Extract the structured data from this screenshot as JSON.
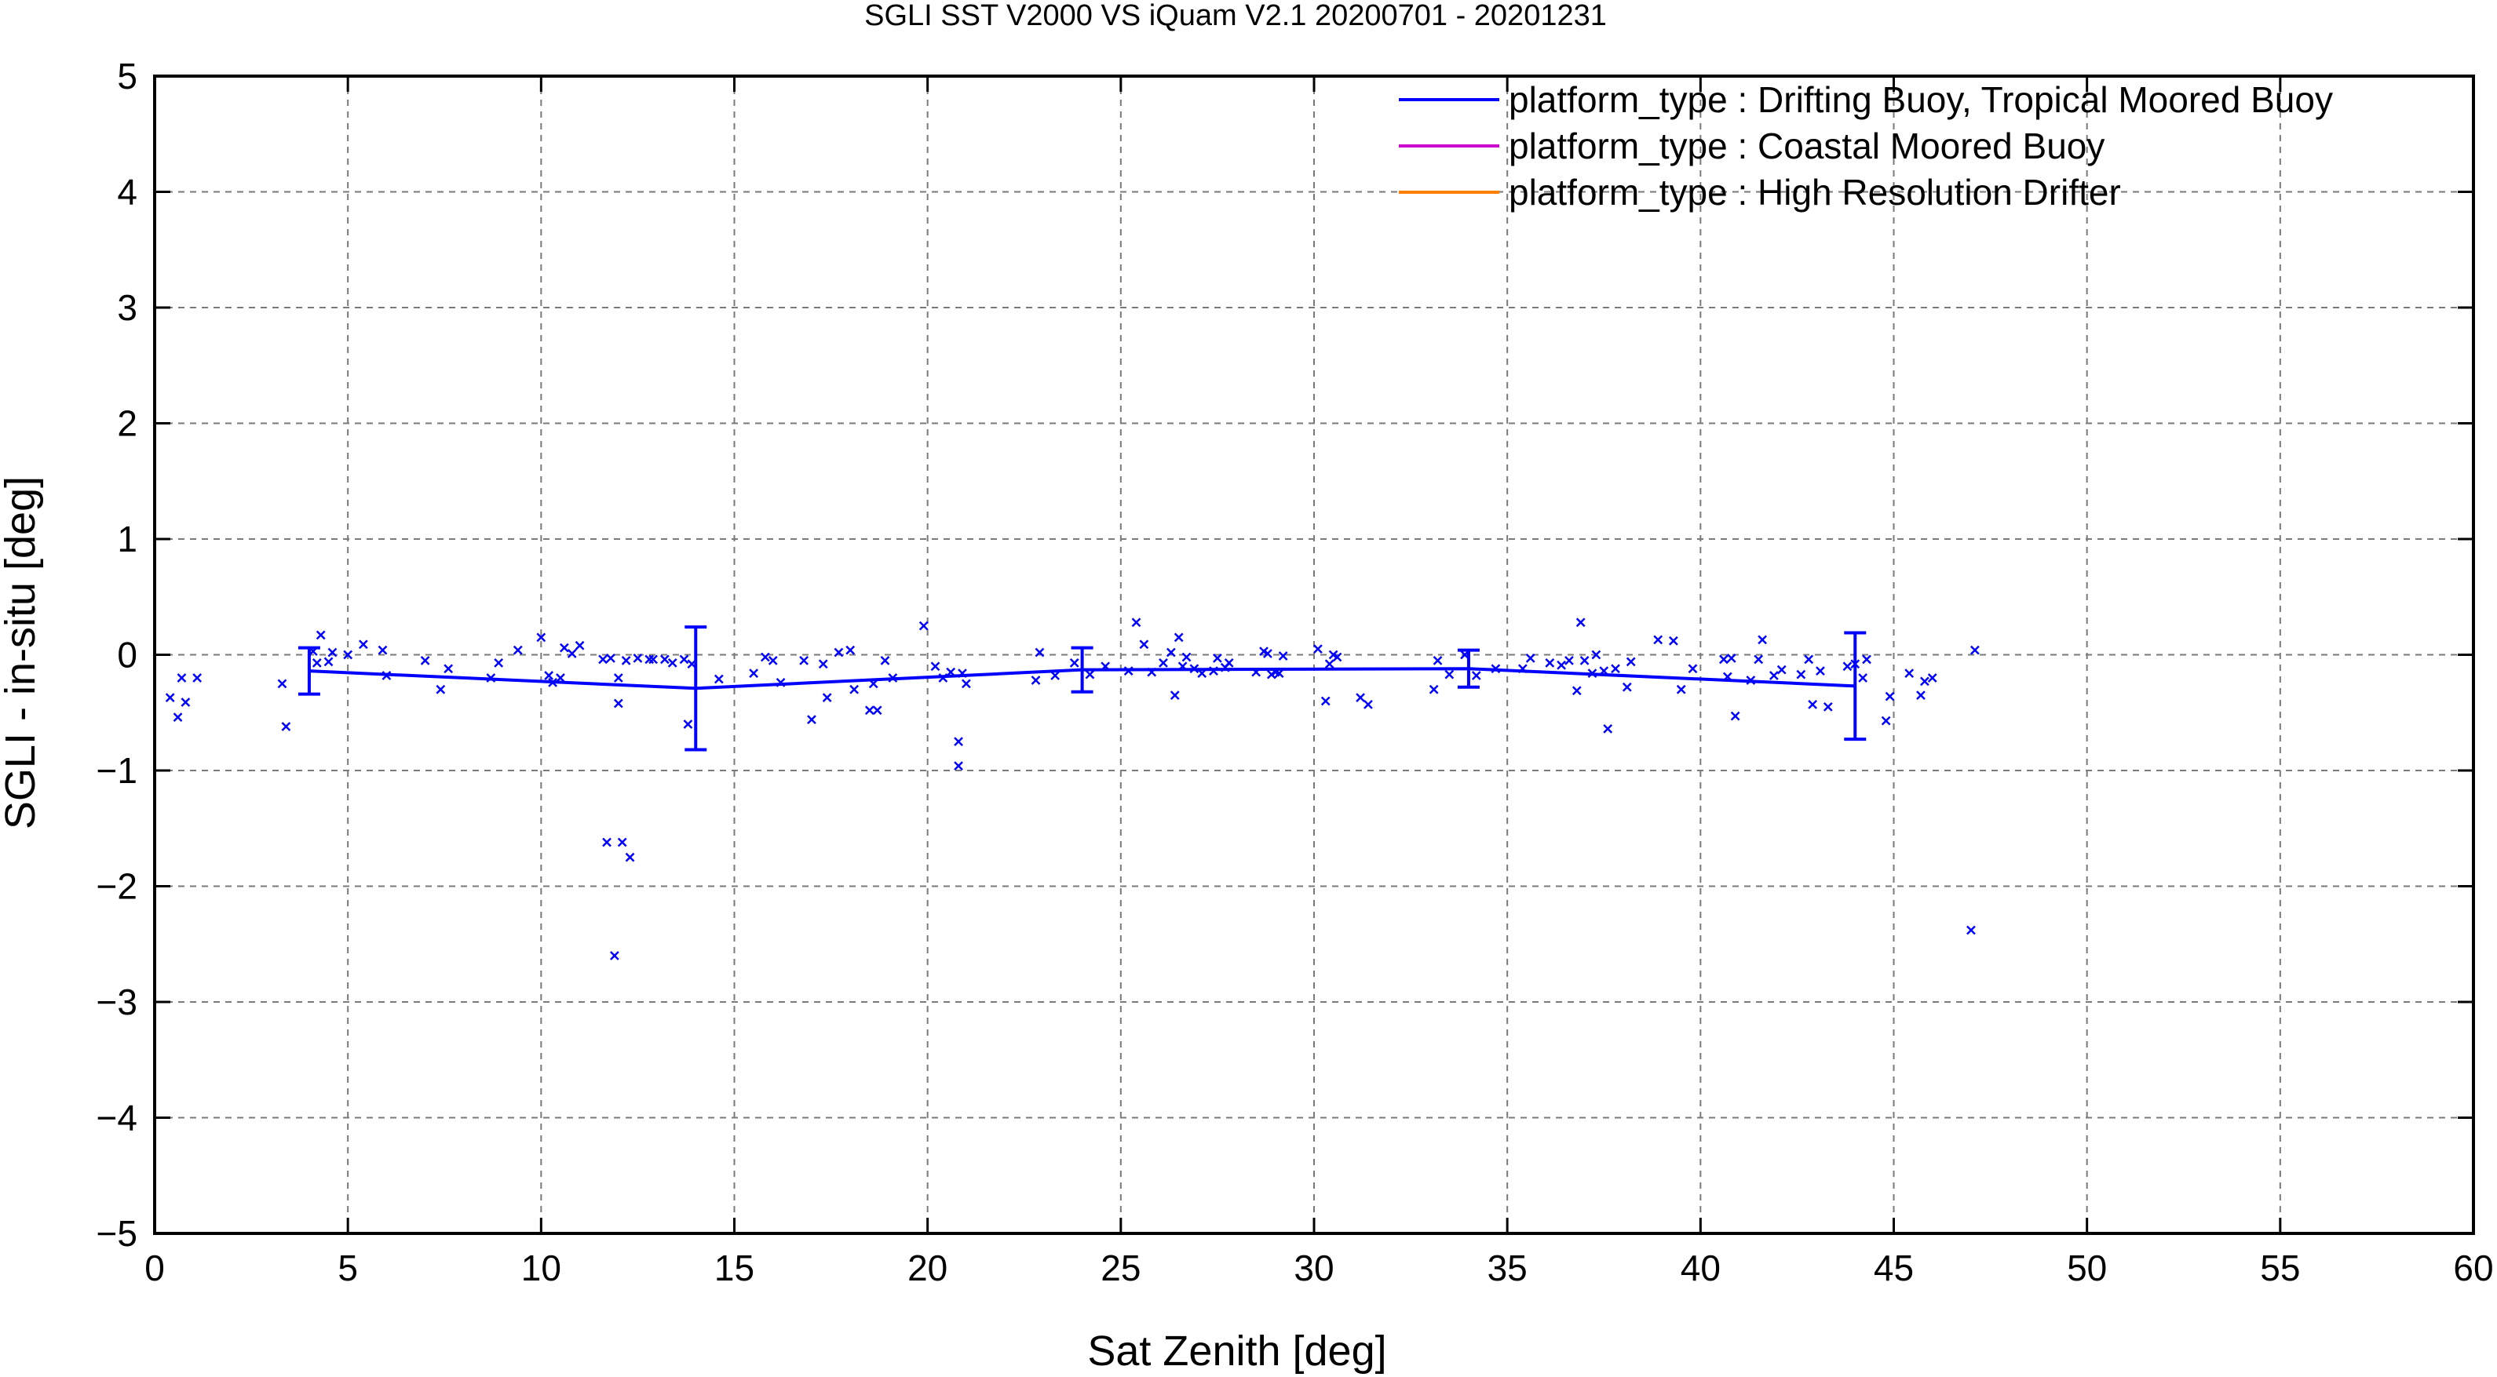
{
  "chart_data": {
    "type": "scatter",
    "title": "SGLI SST V2000 VS iQuam V2.1 20200701 - 20201231",
    "xlabel": "Sat Zenith [deg]",
    "ylabel": "SGLI - in-situ [deg]",
    "xlim": [
      0,
      60
    ],
    "ylim": [
      -5,
      5
    ],
    "xticks": [
      0,
      5,
      10,
      15,
      20,
      25,
      30,
      35,
      40,
      45,
      50,
      55,
      60
    ],
    "yticks": [
      -5,
      -4,
      -3,
      -2,
      -1,
      0,
      1,
      2,
      3,
      4,
      5
    ],
    "xtick_labels": [
      "0",
      "5",
      "10",
      "15",
      "20",
      "25",
      "30",
      "35",
      "40",
      "45",
      "50",
      "55",
      "60"
    ],
    "ytick_labels": [
      "−5",
      "−4",
      "−3",
      "−2",
      "−1",
      "0",
      "1",
      "2",
      "3",
      "4",
      "5"
    ],
    "grid": true,
    "legend_position": "top-right",
    "legend": [
      {
        "label": "platform_type : Drifting Buoy, Tropical Moored Buoy",
        "color": "#0000ff"
      },
      {
        "label": "platform_type : Coastal Moored Buoy",
        "color": "#cc00cc"
      },
      {
        "label": "platform_type : High Resolution Drifter",
        "color": "#ff8000"
      }
    ],
    "series": [
      {
        "name": "platform_type : Drifting Buoy, Tropical Moored Buoy",
        "color": "#0000ff",
        "kind": "points",
        "marker": "x",
        "points": [
          [
            0.4,
            -0.37
          ],
          [
            0.6,
            -0.54
          ],
          [
            0.7,
            -0.2
          ],
          [
            0.8,
            -0.41
          ],
          [
            1.1,
            -0.2
          ],
          [
            3.3,
            -0.25
          ],
          [
            3.4,
            -0.62
          ],
          [
            4.1,
            0.03
          ],
          [
            4.2,
            -0.07
          ],
          [
            4.3,
            0.17
          ],
          [
            4.5,
            -0.06
          ],
          [
            4.6,
            0.02
          ],
          [
            5.0,
            0.0
          ],
          [
            5.4,
            0.09
          ],
          [
            5.9,
            0.04
          ],
          [
            6.0,
            -0.18
          ],
          [
            7.0,
            -0.05
          ],
          [
            7.4,
            -0.3
          ],
          [
            7.6,
            -0.12
          ],
          [
            8.7,
            -0.2
          ],
          [
            8.9,
            -0.07
          ],
          [
            9.4,
            0.04
          ],
          [
            10.0,
            0.15
          ],
          [
            10.2,
            -0.18
          ],
          [
            10.3,
            -0.24
          ],
          [
            10.5,
            -0.2
          ],
          [
            10.6,
            0.06
          ],
          [
            10.8,
            0.01
          ],
          [
            11.0,
            0.08
          ],
          [
            11.6,
            -0.04
          ],
          [
            11.8,
            -0.03
          ],
          [
            11.7,
            -1.62
          ],
          [
            11.9,
            -2.6
          ],
          [
            12.1,
            -1.62
          ],
          [
            12.3,
            -1.75
          ],
          [
            12.0,
            -0.42
          ],
          [
            12.2,
            -0.05
          ],
          [
            12.0,
            -0.2
          ],
          [
            12.5,
            -0.03
          ],
          [
            12.8,
            -0.04
          ],
          [
            12.9,
            -0.04
          ],
          [
            13.2,
            -0.04
          ],
          [
            13.4,
            -0.07
          ],
          [
            13.7,
            -0.04
          ],
          [
            13.8,
            -0.6
          ],
          [
            13.9,
            -0.08
          ],
          [
            14.6,
            -0.21
          ],
          [
            15.5,
            -0.16
          ],
          [
            15.8,
            -0.02
          ],
          [
            16.0,
            -0.05
          ],
          [
            16.2,
            -0.24
          ],
          [
            16.8,
            -0.05
          ],
          [
            17.0,
            -0.56
          ],
          [
            17.3,
            -0.08
          ],
          [
            17.4,
            -0.37
          ],
          [
            17.7,
            0.02
          ],
          [
            18.0,
            0.04
          ],
          [
            18.1,
            -0.3
          ],
          [
            18.6,
            -0.25
          ],
          [
            18.5,
            -0.48
          ],
          [
            18.7,
            -0.48
          ],
          [
            18.9,
            -0.05
          ],
          [
            19.1,
            -0.2
          ],
          [
            19.9,
            0.25
          ],
          [
            20.2,
            -0.1
          ],
          [
            20.4,
            -0.2
          ],
          [
            20.6,
            -0.15
          ],
          [
            20.8,
            -0.75
          ],
          [
            20.8,
            -0.96
          ],
          [
            20.9,
            -0.16
          ],
          [
            21.0,
            -0.25
          ],
          [
            22.8,
            -0.22
          ],
          [
            22.9,
            0.02
          ],
          [
            23.3,
            -0.18
          ],
          [
            23.8,
            -0.07
          ],
          [
            24.2,
            -0.17
          ],
          [
            24.6,
            -0.1
          ],
          [
            25.2,
            -0.14
          ],
          [
            25.4,
            0.28
          ],
          [
            25.6,
            0.09
          ],
          [
            25.8,
            -0.15
          ],
          [
            26.1,
            -0.07
          ],
          [
            26.3,
            0.02
          ],
          [
            26.4,
            -0.35
          ],
          [
            26.5,
            0.15
          ],
          [
            26.6,
            -0.1
          ],
          [
            26.7,
            -0.02
          ],
          [
            26.9,
            -0.12
          ],
          [
            27.1,
            -0.16
          ],
          [
            27.4,
            -0.14
          ],
          [
            27.5,
            -0.03
          ],
          [
            27.7,
            -0.11
          ],
          [
            27.8,
            -0.07
          ],
          [
            28.5,
            -0.15
          ],
          [
            28.7,
            0.03
          ],
          [
            28.8,
            0.01
          ],
          [
            28.9,
            -0.17
          ],
          [
            29.0,
            -0.15
          ],
          [
            29.1,
            -0.16
          ],
          [
            29.2,
            -0.01
          ],
          [
            30.1,
            0.05
          ],
          [
            30.3,
            -0.4
          ],
          [
            30.4,
            -0.08
          ],
          [
            30.6,
            -0.02
          ],
          [
            30.5,
            0.0
          ],
          [
            31.2,
            -0.37
          ],
          [
            31.4,
            -0.43
          ],
          [
            33.1,
            -0.3
          ],
          [
            33.2,
            -0.05
          ],
          [
            33.5,
            -0.17
          ],
          [
            33.9,
            0.0
          ],
          [
            34.2,
            -0.18
          ],
          [
            34.7,
            -0.12
          ],
          [
            35.4,
            -0.12
          ],
          [
            35.6,
            -0.03
          ],
          [
            36.1,
            -0.07
          ],
          [
            36.4,
            -0.09
          ],
          [
            36.6,
            -0.05
          ],
          [
            36.8,
            -0.31
          ],
          [
            36.9,
            0.28
          ],
          [
            37.0,
            -0.05
          ],
          [
            37.2,
            -0.16
          ],
          [
            37.3,
            0.0
          ],
          [
            37.5,
            -0.14
          ],
          [
            37.6,
            -0.64
          ],
          [
            37.8,
            -0.12
          ],
          [
            38.1,
            -0.28
          ],
          [
            38.2,
            -0.06
          ],
          [
            38.9,
            0.13
          ],
          [
            39.3,
            0.12
          ],
          [
            39.5,
            -0.3
          ],
          [
            39.8,
            -0.12
          ],
          [
            40.6,
            -0.04
          ],
          [
            40.7,
            -0.19
          ],
          [
            40.8,
            -0.03
          ],
          [
            40.9,
            -0.53
          ],
          [
            41.3,
            -0.22
          ],
          [
            41.5,
            -0.04
          ],
          [
            41.6,
            0.13
          ],
          [
            41.9,
            -0.18
          ],
          [
            42.1,
            -0.13
          ],
          [
            42.6,
            -0.17
          ],
          [
            42.8,
            -0.04
          ],
          [
            42.9,
            -0.43
          ],
          [
            43.1,
            -0.14
          ],
          [
            43.3,
            -0.45
          ],
          [
            43.8,
            -0.1
          ],
          [
            44.0,
            -0.08
          ],
          [
            44.2,
            -0.2
          ],
          [
            44.3,
            -0.04
          ],
          [
            44.8,
            -0.57
          ],
          [
            44.9,
            -0.36
          ],
          [
            45.4,
            -0.16
          ],
          [
            45.7,
            -0.35
          ],
          [
            45.8,
            -0.23
          ],
          [
            46.0,
            -0.2
          ],
          [
            47.0,
            -2.38
          ],
          [
            47.1,
            0.04
          ]
        ]
      },
      {
        "name": "platform_type : Drifting Buoy, Tropical Moored Buoy",
        "color": "#0000ff",
        "kind": "binned-mean",
        "x": [
          4,
          14,
          24,
          34,
          44
        ],
        "y": [
          -0.14,
          -0.29,
          -0.13,
          -0.12,
          -0.27
        ],
        "yerr": [
          0.2,
          0.53,
          0.19,
          0.16,
          0.46
        ]
      }
    ]
  }
}
